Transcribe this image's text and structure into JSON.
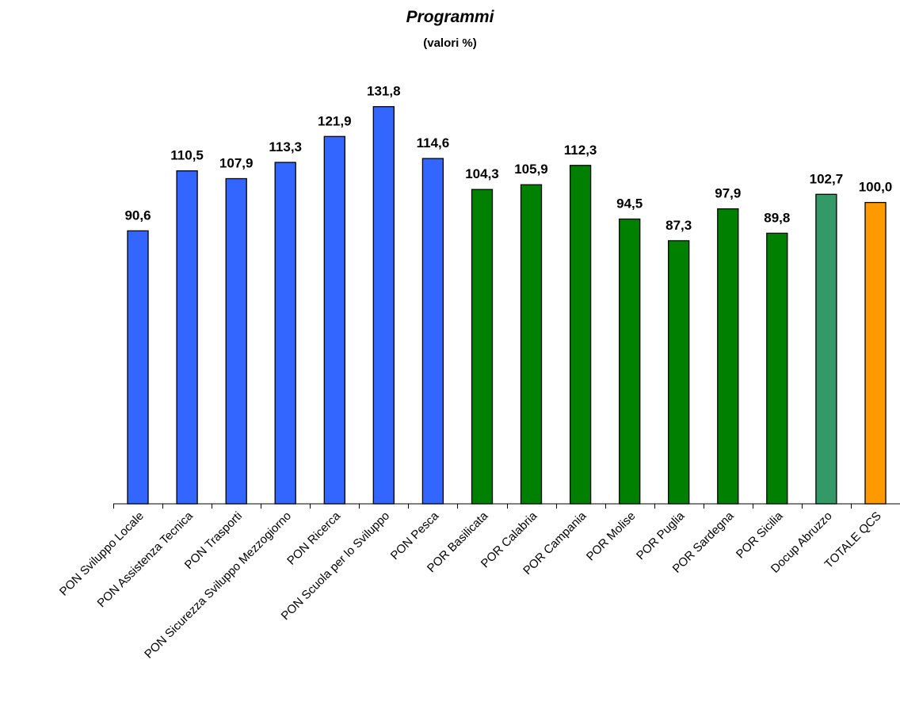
{
  "chart_data": {
    "type": "bar",
    "title": "Programmi",
    "subtitle": "(valori %)",
    "xlabel": "",
    "ylabel": "",
    "ylim": [
      0,
      140
    ],
    "grid": false,
    "legend": "none",
    "show_value_labels": true,
    "categories": [
      "PON Sviluppo Locale",
      "PON Assistenza Tecnica",
      "PON Trasporti",
      "PON Sicurezza Sviluppo Mezzogiorno",
      "PON Ricerca",
      "PON Scuola per lo Sviluppo",
      "PON Pesca",
      "POR Basilicata",
      "POR Calabria",
      "POR Campania",
      "POR Molise",
      "POR Puglia",
      "POR Sardegna",
      "POR Sicilia",
      "Docup Abruzzo",
      "TOTALE QCS"
    ],
    "values": [
      90.6,
      110.5,
      107.9,
      113.3,
      121.9,
      131.8,
      114.6,
      104.3,
      105.9,
      112.3,
      94.5,
      87.3,
      97.9,
      89.8,
      102.7,
      100.0
    ],
    "value_labels": [
      "90,6",
      "110,5",
      "107,9",
      "113,3",
      "121,9",
      "131,8",
      "114,6",
      "104,3",
      "105,9",
      "112,3",
      "94,5",
      "87,3",
      "97,9",
      "89,8",
      "102,7",
      "100,0"
    ],
    "bar_colors": [
      "#3366FF",
      "#3366FF",
      "#3366FF",
      "#3366FF",
      "#3366FF",
      "#3366FF",
      "#3366FF",
      "#008000",
      "#008000",
      "#008000",
      "#008000",
      "#008000",
      "#008000",
      "#008000",
      "#339966",
      "#FF9900"
    ]
  }
}
